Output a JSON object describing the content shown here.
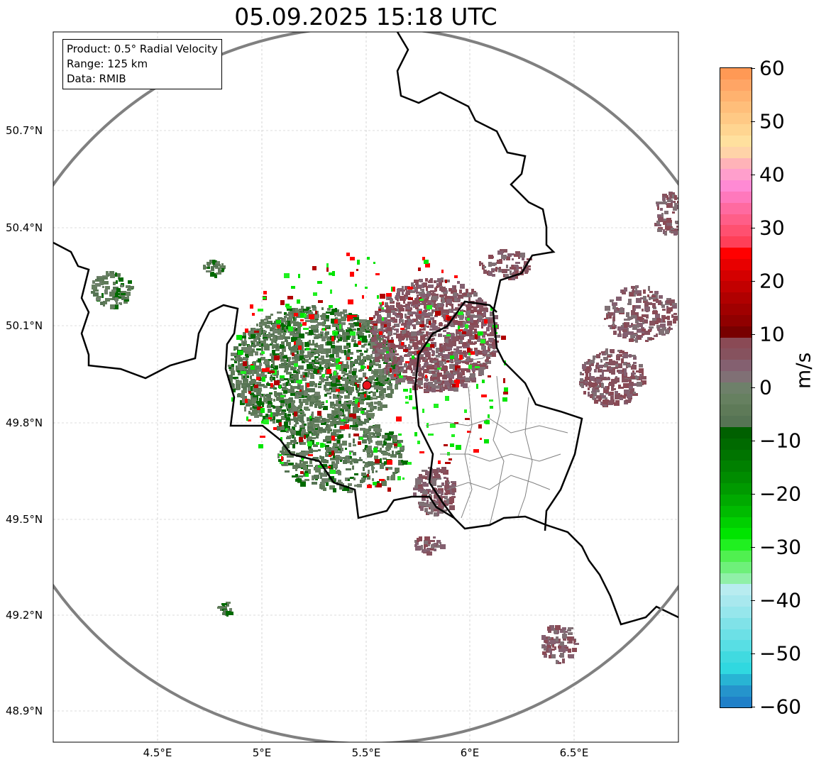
{
  "title": "05.09.2025 15:18 UTC",
  "info_box": [
    "Product: 0.5° Radial Velocity",
    "Range: 125 km",
    "Data: RMIB"
  ],
  "lat_ticks": [
    "50.7°N",
    "50.4°N",
    "50.1°N",
    "49.8°N",
    "49.5°N",
    "49.2°N",
    "48.9°N"
  ],
  "lon_ticks": [
    "4.5°E",
    "5°E",
    "5.5°E",
    "6°E",
    "6.5°E"
  ],
  "colorbar": {
    "label": "m/s",
    "ticks": [
      "60",
      "50",
      "40",
      "30",
      "20",
      "10",
      "0",
      "−10",
      "−20",
      "−30",
      "−40",
      "−50",
      "−60"
    ],
    "range": [
      -60,
      60
    ],
    "colors_top_to_bottom": [
      "#ff9955",
      "#ffa565",
      "#ffb26f",
      "#ffbe7a",
      "#ffc985",
      "#ffd591",
      "#ffe09e",
      "#ffd3a8",
      "#ffb3b8",
      "#ff9fcc",
      "#ff8ad4",
      "#ff78bc",
      "#ff6aa0",
      "#ff5e88",
      "#ff5070",
      "#ff3f58",
      "#ff0000",
      "#e80000",
      "#d40000",
      "#c20000",
      "#b00000",
      "#a00000",
      "#900000",
      "#780000",
      "#8a4a55",
      "#86525e",
      "#846070",
      "#807075",
      "#6e806a",
      "#668060",
      "#5e7a58",
      "#567454",
      "#006000",
      "#006a00",
      "#007400",
      "#008000",
      "#008c00",
      "#009a00",
      "#00aa00",
      "#00bb00",
      "#00d000",
      "#00e400",
      "#20f020",
      "#50f050",
      "#6ef07a",
      "#90f0a8",
      "#b8ecf0",
      "#a8e8ee",
      "#96e6ec",
      "#80e2e8",
      "#6ce0e6",
      "#58dee4",
      "#40dae0",
      "#30d8e0",
      "#28b4d4",
      "#2594cc",
      "#2080c8"
    ]
  },
  "radar_site": {
    "lon": 5.5,
    "lat": 49.91,
    "color": "#e8151b"
  },
  "colors": {
    "range_ring": "#808080",
    "border": "#000000",
    "grid": "#bbbbbb",
    "echo_inbound": "#5e7a58",
    "echo_outbound": "#86525e"
  }
}
